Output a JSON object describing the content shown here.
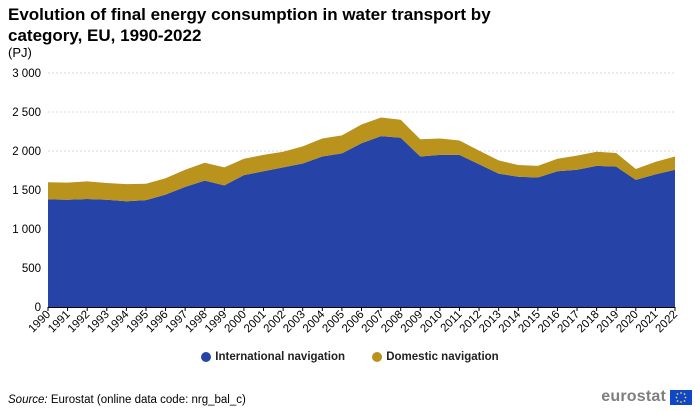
{
  "title": "Evolution of final energy consumption in water transport by category, EU, 1990-2022",
  "unit": "(PJ)",
  "chart_data": {
    "type": "area",
    "stacked": true,
    "title": "Evolution of final energy consumption in water transport by category, EU, 1990-2022",
    "ylabel": "(PJ)",
    "ylim": [
      0,
      3000
    ],
    "yticks": [
      0,
      500,
      1000,
      1500,
      2000,
      2500,
      3000
    ],
    "ytick_labels": [
      "0",
      "500",
      "1 000",
      "1 500",
      "2 000",
      "2 500",
      "3 000"
    ],
    "grid": true,
    "legend": "bottom",
    "categories": [
      "1990",
      "1991",
      "1992",
      "1993",
      "1994",
      "1995",
      "1996",
      "1997",
      "1998",
      "1999",
      "2000",
      "2001",
      "2002",
      "2003",
      "2004",
      "2005",
      "2006",
      "2007",
      "2008",
      "2009",
      "2010",
      "2011",
      "2012",
      "2013",
      "2014",
      "2015",
      "2016",
      "2017",
      "2018",
      "2019",
      "2020",
      "2021",
      "2022"
    ],
    "series": [
      {
        "name": "International navigation",
        "color": "#2644a8",
        "values": [
          1380,
          1375,
          1385,
          1375,
          1355,
          1370,
          1440,
          1540,
          1620,
          1560,
          1690,
          1740,
          1790,
          1840,
          1930,
          1970,
          2100,
          2190,
          2170,
          1930,
          1950,
          1950,
          1830,
          1710,
          1670,
          1660,
          1740,
          1760,
          1810,
          1800,
          1630,
          1700,
          1760
        ]
      },
      {
        "name": "Domestic navigation",
        "color": "#b9931c",
        "values": [
          220,
          220,
          225,
          215,
          220,
          210,
          210,
          220,
          230,
          230,
          210,
          210,
          200,
          220,
          230,
          230,
          240,
          240,
          230,
          220,
          210,
          185,
          175,
          170,
          150,
          150,
          160,
          180,
          180,
          175,
          140,
          160,
          170
        ]
      }
    ]
  },
  "legend": {
    "items": [
      {
        "label": "International navigation",
        "color": "#2644a8"
      },
      {
        "label": "Domestic navigation",
        "color": "#b9931c"
      }
    ]
  },
  "source": {
    "prefix": "Source:",
    "text": " Eurostat (online data code: nrg_bal_c)"
  },
  "logo": {
    "text": "eurostat"
  }
}
